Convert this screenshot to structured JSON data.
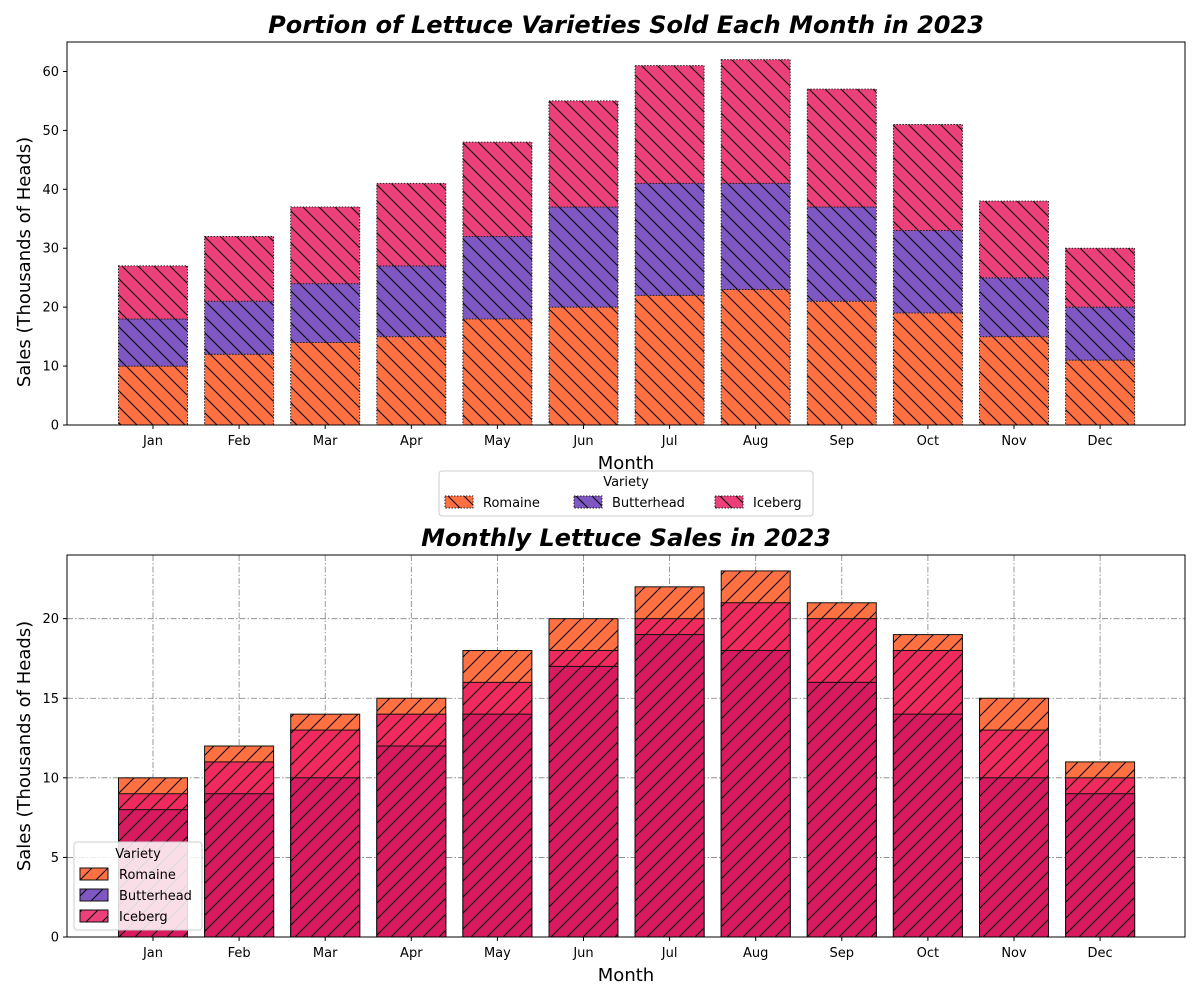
{
  "colors": {
    "Romaine": "#ff7043",
    "Butterhead": "#7e57c2",
    "Iceberg": "#ec407a",
    "bottom_background": "#d81b60",
    "bottom_top": "#ec407a"
  },
  "chart_data": [
    {
      "type": "bar",
      "stacked": true,
      "title": "Portion of Lettuce Varieties Sold Each Month in 2023",
      "xlabel": "Month",
      "ylabel": "Sales (Thousands of Heads)",
      "categories": [
        "Jan",
        "Feb",
        "Mar",
        "Apr",
        "May",
        "Jun",
        "Jul",
        "Aug",
        "Sep",
        "Oct",
        "Nov",
        "Dec"
      ],
      "series": [
        {
          "name": "Romaine",
          "values": [
            10,
            12,
            14,
            15,
            18,
            20,
            22,
            23,
            21,
            19,
            15,
            11
          ]
        },
        {
          "name": "Butterhead",
          "values": [
            8,
            9,
            10,
            12,
            14,
            17,
            19,
            18,
            16,
            14,
            10,
            9
          ]
        },
        {
          "name": "Iceberg",
          "values": [
            9,
            11,
            13,
            14,
            16,
            18,
            20,
            21,
            20,
            18,
            13,
            10
          ]
        }
      ],
      "ylim": [
        0,
        65
      ],
      "yticks": [
        0,
        10,
        20,
        30,
        40,
        50,
        60
      ],
      "grid": false,
      "legend": {
        "title": "Variety",
        "placement": "below-center",
        "entries": [
          "Romaine",
          "Butterhead",
          "Iceberg"
        ]
      }
    },
    {
      "type": "bar",
      "stacked": false,
      "overlapping": true,
      "title": "Monthly Lettuce Sales in 2023",
      "xlabel": "Month",
      "ylabel": "Sales (Thousands of Heads)",
      "categories": [
        "Jan",
        "Feb",
        "Mar",
        "Apr",
        "May",
        "Jun",
        "Jul",
        "Aug",
        "Sep",
        "Oct",
        "Nov",
        "Dec"
      ],
      "series": [
        {
          "name": "Romaine",
          "values": [
            10,
            12,
            14,
            15,
            18,
            20,
            22,
            23,
            21,
            19,
            15,
            11
          ]
        },
        {
          "name": "Butterhead",
          "values": [
            8,
            9,
            10,
            12,
            14,
            17,
            19,
            18,
            16,
            14,
            10,
            9
          ]
        },
        {
          "name": "Iceberg",
          "values": [
            9,
            11,
            13,
            14,
            16,
            18,
            20,
            21,
            20,
            18,
            13,
            10
          ]
        }
      ],
      "ylim": [
        0,
        24
      ],
      "yticks": [
        0,
        5,
        10,
        15,
        20
      ],
      "grid": true,
      "legend": {
        "title": "Variety",
        "placement": "lower-left",
        "entries": [
          "Romaine",
          "Butterhead",
          "Iceberg"
        ]
      }
    }
  ]
}
